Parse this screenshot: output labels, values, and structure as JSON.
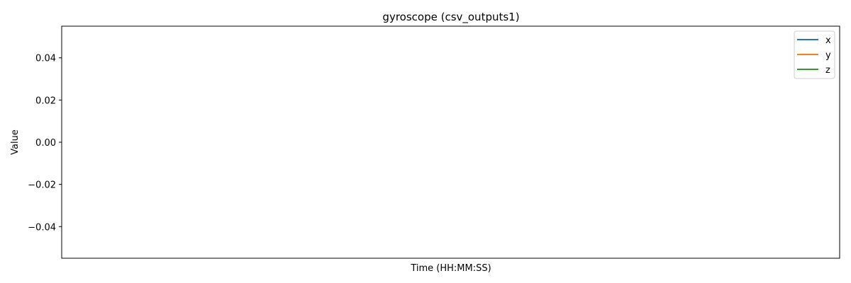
{
  "chart_data": {
    "type": "line",
    "title": "gyroscope (csv_outputs1)",
    "xlabel": "Time (HH:MM:SS)",
    "ylabel": "Value",
    "ylim": [
      -0.055,
      0.055
    ],
    "yticks": [
      -0.04,
      -0.02,
      0.0,
      0.02,
      0.04
    ],
    "ytick_labels": [
      "−0.04",
      "−0.02",
      "0.00",
      "0.02",
      "0.04"
    ],
    "x": [],
    "series": [
      {
        "name": "x",
        "color": "#1f77b4",
        "values": []
      },
      {
        "name": "y",
        "color": "#ff7f0e",
        "values": []
      },
      {
        "name": "z",
        "color": "#2ca02c",
        "values": []
      }
    ],
    "grid": false,
    "legend_position": "top-right"
  }
}
